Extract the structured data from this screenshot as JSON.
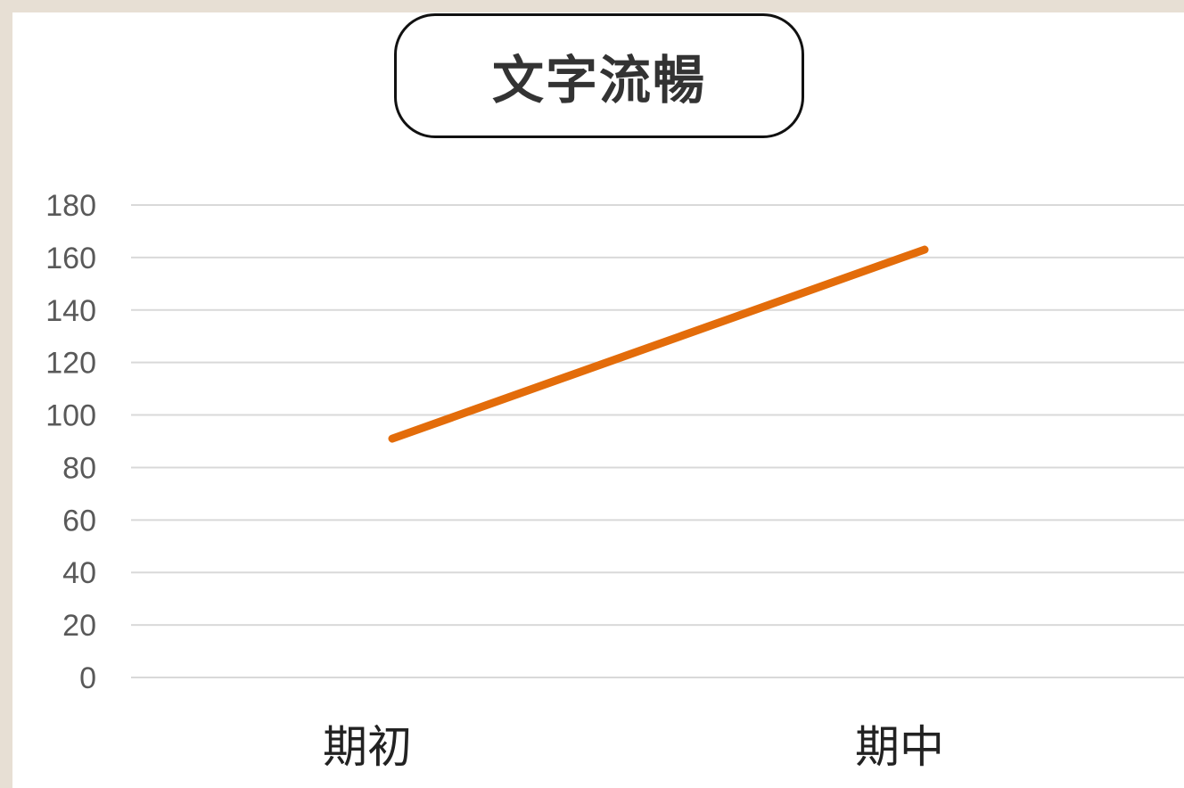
{
  "chart_data": {
    "type": "line",
    "title": "文字流暢",
    "categories": [
      "期初",
      "期中"
    ],
    "series": [
      {
        "values": [
          91,
          163
        ],
        "color": "#e36c0a"
      }
    ],
    "ylim": [
      0,
      180
    ],
    "yticks": [
      0,
      20,
      40,
      60,
      80,
      100,
      120,
      140,
      160,
      180
    ],
    "grid": true,
    "xlabel": "",
    "ylabel": ""
  },
  "colors": {
    "background": "#e7dfd4",
    "card": "#ffffff",
    "gridline": "#d9d9d9",
    "line": "#e36c0a"
  }
}
